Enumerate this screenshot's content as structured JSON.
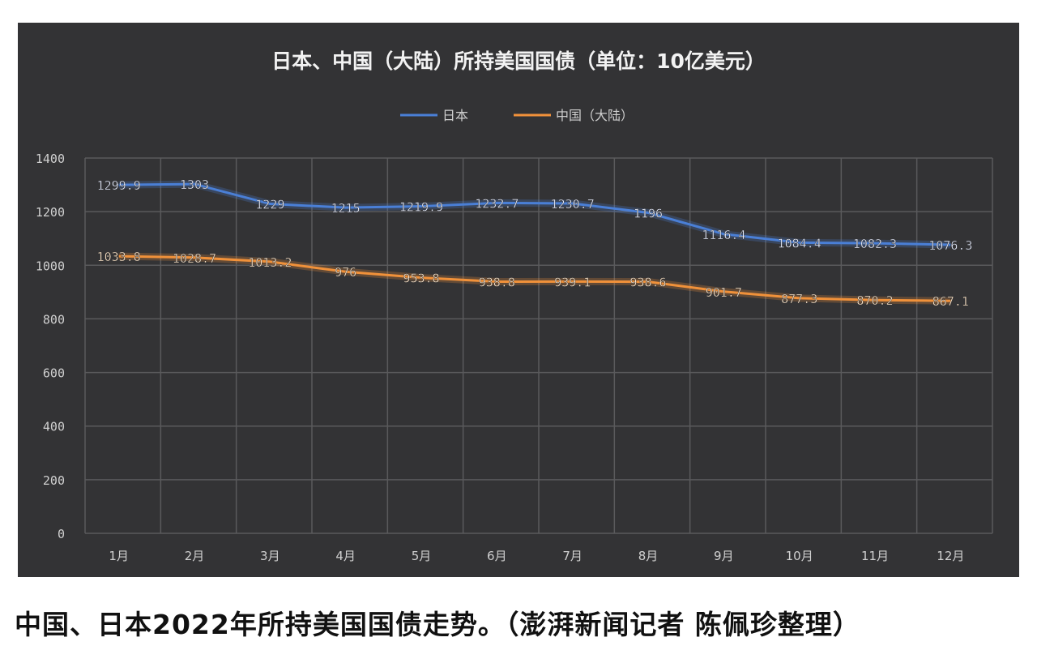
{
  "chart_data": {
    "type": "line",
    "title": "日本、中国（大陆）所持美国国债（单位：10亿美元）",
    "categories": [
      "1月",
      "2月",
      "3月",
      "4月",
      "5月",
      "6月",
      "7月",
      "8月",
      "9月",
      "10月",
      "11月",
      "12月"
    ],
    "series": [
      {
        "name": "日本",
        "color": "#4a7fd6",
        "values": [
          1299.9,
          1303,
          1229,
          1215,
          1219.9,
          1232.7,
          1230.7,
          1196,
          1116.4,
          1084.4,
          1082.3,
          1076.3
        ],
        "labels": [
          "1299.9",
          "1303",
          "1229",
          "1215",
          "1219.9",
          "1232.7",
          "1230.7",
          "1196",
          "1116.4",
          "1084.4",
          "1082.3",
          "1076.3"
        ]
      },
      {
        "name": "中国（大陆）",
        "color": "#f0913a",
        "values": [
          1033.8,
          1028.7,
          1013.2,
          976,
          953.8,
          938.8,
          939.1,
          938.6,
          901.7,
          877.3,
          870.2,
          867.1
        ],
        "labels": [
          "1033.8",
          "1028.7",
          "1013.2",
          "976",
          "953.8",
          "938.8",
          "939.1",
          "938.6",
          "901.7",
          "877.3",
          "870.2",
          "867.1"
        ]
      }
    ],
    "yticks": [
      0,
      200,
      400,
      600,
      800,
      1000,
      1200,
      1400
    ],
    "ylim": [
      0,
      1400
    ],
    "xlabel": "",
    "ylabel": "",
    "grid": true,
    "legend": "top-center"
  },
  "caption": "中国、日本2022年所持美国国债走势。（澎湃新闻记者 陈佩珍整理）"
}
